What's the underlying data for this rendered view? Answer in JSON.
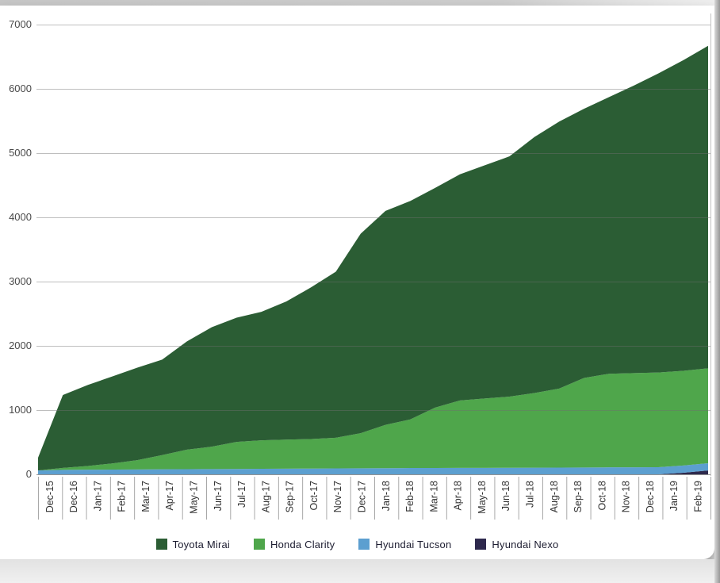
{
  "page": {
    "background_color": "#e9e9e9",
    "card_color": "#ffffff"
  },
  "chart_data": {
    "type": "area",
    "stacked": true,
    "title": "",
    "xlabel": "",
    "ylabel": "",
    "ylim": [
      0,
      7000
    ],
    "y_ticks": [
      0,
      1000,
      2000,
      3000,
      4000,
      5000,
      6000,
      7000
    ],
    "grid": "horizontal",
    "legend_position": "bottom",
    "categories": [
      "Dec-15",
      "Dec-16",
      "Jan-17",
      "Feb-17",
      "Mar-17",
      "Apr-17",
      "May-17",
      "Jun-17",
      "Jul-17",
      "Aug-17",
      "Sep-17",
      "Oct-17",
      "Nov-17",
      "Dec-17",
      "Jan-18",
      "Feb-18",
      "Mar-18",
      "Apr-18",
      "May-18",
      "Jun-18",
      "Jul-18",
      "Aug-18",
      "Sep-18",
      "Oct-18",
      "Nov-18",
      "Dec-18",
      "Jan-19",
      "Feb-19"
    ],
    "series": [
      {
        "name": "Toyota Mirai",
        "color": "#2b5d34",
        "values": [
          200,
          1135,
          1260,
          1355,
          1440,
          1485,
          1685,
          1860,
          1935,
          2000,
          2150,
          2360,
          2585,
          3105,
          3330,
          3400,
          3420,
          3520,
          3630,
          3740,
          3985,
          4155,
          4190,
          4305,
          4475,
          4655,
          4835,
          5020
        ]
      },
      {
        "name": "Honda Clarity",
        "color": "#4fa64b",
        "values": [
          0,
          30,
          58,
          96,
          144,
          222,
          305,
          348,
          420,
          444,
          452,
          460,
          478,
          546,
          674,
          757,
          940,
          1050,
          1079,
          1108,
          1162,
          1230,
          1393,
          1456,
          1465,
          1474,
          1474,
          1477
        ]
      },
      {
        "name": "Hyundai Tucson",
        "color": "#5c9fd0",
        "values": [
          60,
          70,
          72,
          74,
          76,
          78,
          80,
          82,
          84,
          86,
          88,
          90,
          92,
          94,
          96,
          98,
          99,
          100,
          101,
          102,
          103,
          105,
          107,
          109,
          110,
          111,
          112,
          113
        ]
      },
      {
        "name": "Hyundai Nexo",
        "color": "#2e294d",
        "values": [
          0,
          0,
          0,
          0,
          0,
          0,
          0,
          0,
          0,
          0,
          0,
          0,
          0,
          0,
          0,
          0,
          0,
          0,
          0,
          0,
          0,
          0,
          0,
          0,
          0,
          0,
          25,
          60
        ]
      }
    ],
    "stacking_note": "bands stacked bottom-to-top in reverse legend order: Nexo, Tucson, Clarity, Mirai"
  }
}
